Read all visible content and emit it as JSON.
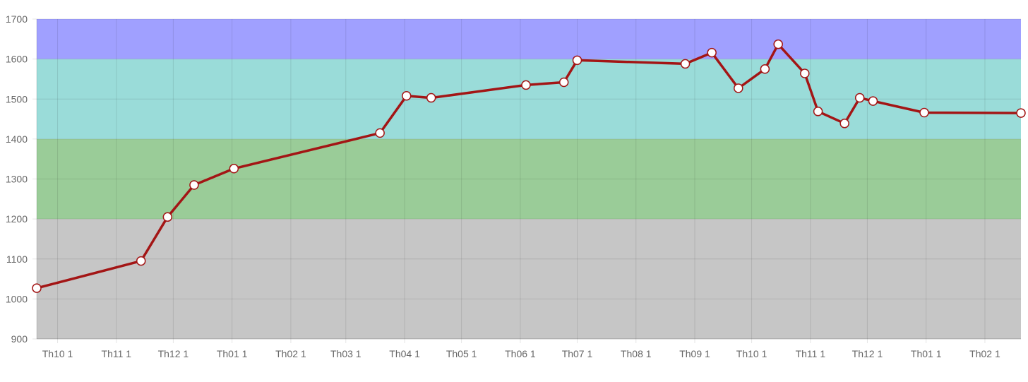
{
  "chart_data": {
    "type": "line",
    "title": "",
    "xlabel": "",
    "ylabel": "",
    "ylim": [
      900,
      1700
    ],
    "yticks": [
      "900",
      "1000",
      "1100",
      "1200",
      "1300",
      "1400",
      "1500",
      "1600",
      "1700"
    ],
    "x_domain": [
      "2023-09-20",
      "2025-02-20"
    ],
    "xticks": [
      {
        "date": "2023-10-01",
        "label": "Th10 1"
      },
      {
        "date": "2023-11-01",
        "label": "Th11 1"
      },
      {
        "date": "2023-12-01",
        "label": "Th12 1"
      },
      {
        "date": "2024-01-01",
        "label": "Th01 1"
      },
      {
        "date": "2024-02-01",
        "label": "Th02 1"
      },
      {
        "date": "2024-03-01",
        "label": "Th03 1"
      },
      {
        "date": "2024-04-01",
        "label": "Th04 1"
      },
      {
        "date": "2024-05-01",
        "label": "Th05 1"
      },
      {
        "date": "2024-06-01",
        "label": "Th06 1"
      },
      {
        "date": "2024-07-01",
        "label": "Th07 1"
      },
      {
        "date": "2024-08-01",
        "label": "Th08 1"
      },
      {
        "date": "2024-09-01",
        "label": "Th09 1"
      },
      {
        "date": "2024-10-01",
        "label": "Th10 1"
      },
      {
        "date": "2024-11-01",
        "label": "Th11 1"
      },
      {
        "date": "2024-12-01",
        "label": "Th12 1"
      },
      {
        "date": "2025-01-01",
        "label": "Th01 1"
      },
      {
        "date": "2025-02-01",
        "label": "Th02 1"
      }
    ],
    "bands": [
      {
        "from": 900,
        "to": 1200,
        "color": "#c6c6c6"
      },
      {
        "from": 1200,
        "to": 1400,
        "color": "#9acc98"
      },
      {
        "from": 1400,
        "to": 1600,
        "color": "#9adcd9"
      },
      {
        "from": 1600,
        "to": 1700,
        "color": "#a0a0ff"
      }
    ],
    "grid": true,
    "legend": "none",
    "line_color": "#a31515",
    "point_fill": "#ffffff",
    "series": [
      {
        "points": [
          {
            "x": "2023-09-20",
            "y": 1027
          },
          {
            "x": "2023-11-14",
            "y": 1095
          },
          {
            "x": "2023-11-28",
            "y": 1205
          },
          {
            "x": "2023-12-12",
            "y": 1285
          },
          {
            "x": "2024-01-02",
            "y": 1326
          },
          {
            "x": "2024-03-19",
            "y": 1415
          },
          {
            "x": "2024-04-02",
            "y": 1508
          },
          {
            "x": "2024-04-15",
            "y": 1503
          },
          {
            "x": "2024-06-04",
            "y": 1535
          },
          {
            "x": "2024-06-24",
            "y": 1542
          },
          {
            "x": "2024-07-01",
            "y": 1597
          },
          {
            "x": "2024-08-27",
            "y": 1588
          },
          {
            "x": "2024-09-10",
            "y": 1616
          },
          {
            "x": "2024-09-24",
            "y": 1527
          },
          {
            "x": "2024-10-08",
            "y": 1575
          },
          {
            "x": "2024-10-15",
            "y": 1637
          },
          {
            "x": "2024-10-29",
            "y": 1564
          },
          {
            "x": "2024-11-05",
            "y": 1469
          },
          {
            "x": "2024-11-19",
            "y": 1439
          },
          {
            "x": "2024-11-27",
            "y": 1503
          },
          {
            "x": "2024-12-04",
            "y": 1495
          },
          {
            "x": "2024-12-31",
            "y": 1466
          },
          {
            "x": "2025-02-20",
            "y": 1465
          }
        ]
      }
    ]
  }
}
